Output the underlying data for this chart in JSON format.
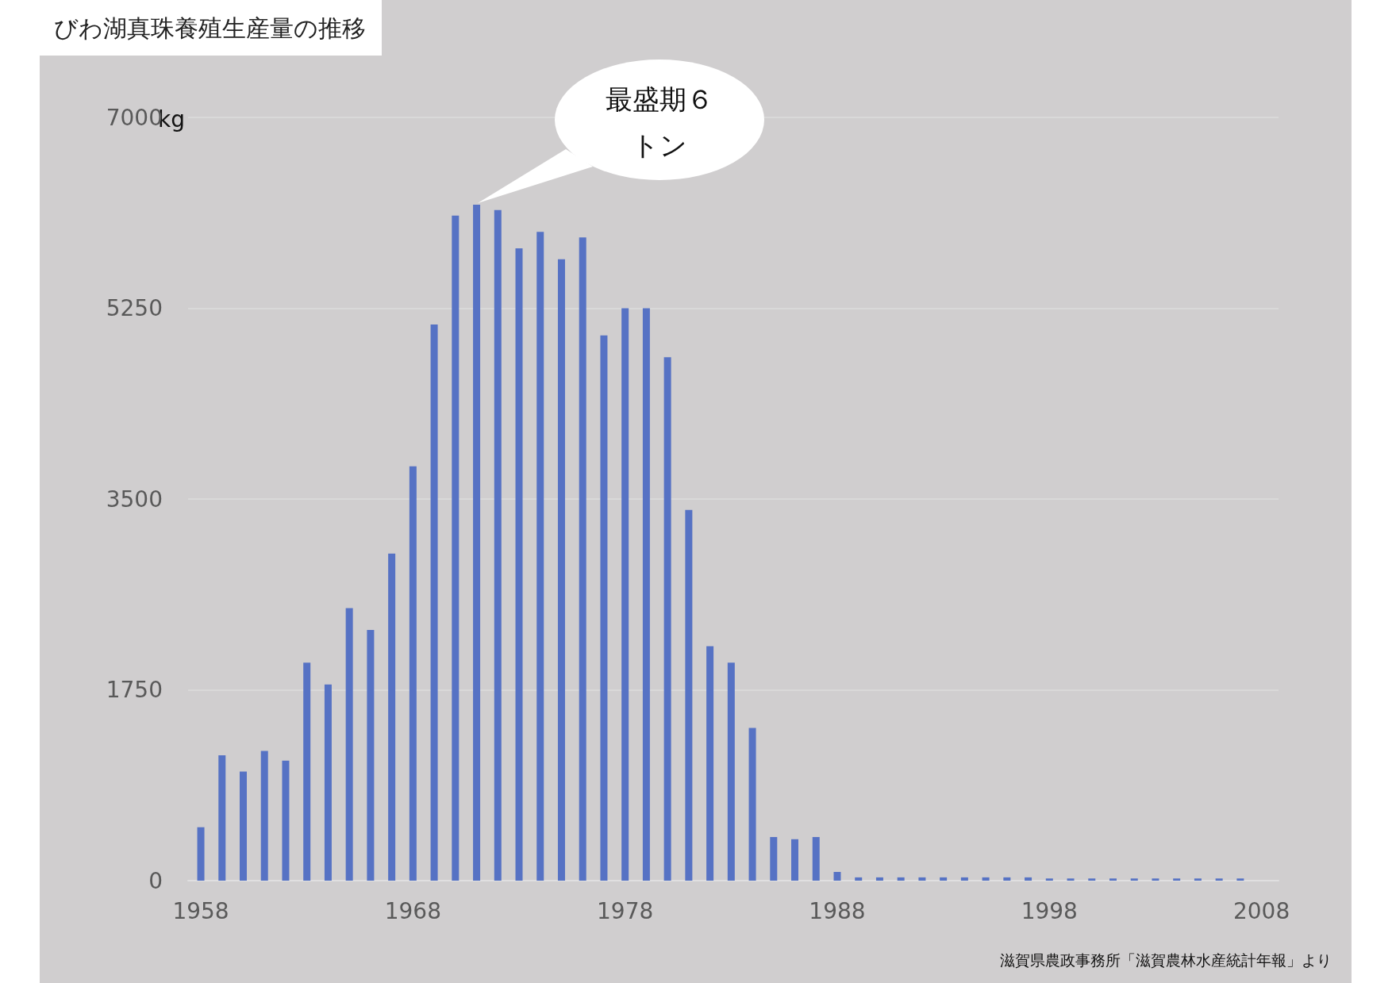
{
  "chart_data": {
    "type": "bar",
    "title": "びわ湖真珠養殖生産量の推移",
    "ylabel": "kg",
    "x": [
      1958,
      1959,
      1960,
      1961,
      1962,
      1963,
      1964,
      1965,
      1966,
      1967,
      1968,
      1969,
      1970,
      1971,
      1972,
      1973,
      1974,
      1975,
      1976,
      1977,
      1978,
      1979,
      1980,
      1981,
      1982,
      1983,
      1984,
      1985,
      1986,
      1987,
      1988,
      1989,
      1990,
      1991,
      1992,
      1993,
      1994,
      1995,
      1996,
      1997,
      1998,
      1999,
      2000,
      2001,
      2002,
      2003,
      2004,
      2005,
      2006,
      2007
    ],
    "values": [
      490,
      1150,
      1000,
      1190,
      1100,
      2000,
      1800,
      2500,
      2300,
      3000,
      3800,
      5100,
      6100,
      6200,
      6150,
      5800,
      5950,
      5700,
      5900,
      5000,
      5250,
      5250,
      4800,
      3400,
      2150,
      2000,
      1400,
      400,
      380,
      400,
      80,
      30,
      30,
      30,
      30,
      30,
      30,
      30,
      30,
      30,
      20,
      20,
      20,
      20,
      20,
      20,
      20,
      20,
      20,
      20
    ],
    "color": "#5672c4",
    "xlim": [
      1957.4,
      2008.8
    ],
    "xticks": [
      1958,
      1968,
      1978,
      1988,
      1998,
      2008
    ],
    "ylim": [
      0,
      7000
    ],
    "yticks": [
      0,
      1750,
      3500,
      5250,
      7000
    ],
    "grid": "y",
    "annotations": [
      "最盛期６トン",
      "滋賀県農政事務所「滋賀農林水産統計年報」より"
    ]
  }
}
